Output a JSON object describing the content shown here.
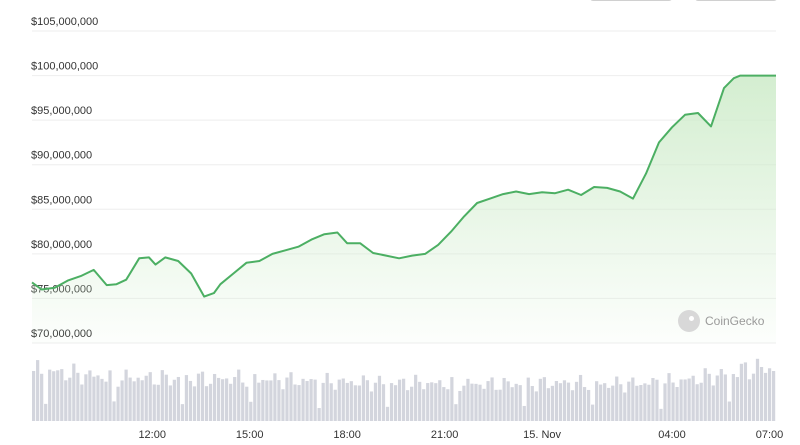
{
  "chart_data": {
    "type": "area",
    "currency": "$",
    "line_color": "#4caf63",
    "fill_color": "#cfeccb",
    "volume_color": "#d3d5dd",
    "y_axis": {
      "ticks": [
        "$70,000,000",
        "$75,000,000",
        "$80,000,000",
        "$85,000,000",
        "$90,000,000",
        "$95,000,000",
        "$100,000,000",
        "$105,000,000"
      ],
      "tick_values": [
        70000000,
        75000000,
        80000000,
        85000000,
        90000000,
        95000000,
        100000000,
        105000000
      ],
      "ylim": [
        70000000,
        105000000
      ]
    },
    "x_axis": {
      "ticks": [
        "12:00",
        "15:00",
        "18:00",
        "21:00",
        "15. Nov",
        "04:00",
        "07:00"
      ],
      "tick_hours": [
        12,
        15,
        18,
        21,
        24,
        28,
        31
      ],
      "xlim_hours": [
        8.3,
        31.2
      ]
    },
    "grid": true,
    "series": [
      {
        "values_hours": [
          8.3,
          8.6,
          9.0,
          9.4,
          9.8,
          10.2,
          10.6,
          10.9,
          11.2,
          11.6,
          11.9,
          12.1,
          12.4,
          12.8,
          13.2,
          13.6,
          13.9,
          14.1,
          14.5,
          14.9,
          15.3,
          15.7,
          16.1,
          16.5,
          16.9,
          17.3,
          17.7,
          18.0,
          18.4,
          18.8,
          19.2,
          19.6,
          20.0,
          20.4,
          20.8,
          21.2,
          21.6,
          22.0,
          22.4,
          22.8,
          23.2,
          23.6,
          24.0,
          24.4,
          24.8,
          25.2,
          25.6,
          26.0,
          26.4,
          26.8,
          27.2,
          27.6,
          28.0,
          28.4,
          28.8,
          29.2,
          29.6,
          29.9,
          30.1,
          30.4,
          30.7,
          31.0,
          31.2
        ],
        "values": [
          76800000,
          76000000,
          76200000,
          77000000,
          77500000,
          78200000,
          76500000,
          76600000,
          77100000,
          79500000,
          79600000,
          78800000,
          79600000,
          79200000,
          77800000,
          75200000,
          75600000,
          76600000,
          77800000,
          79000000,
          79200000,
          80000000,
          80400000,
          80800000,
          81600000,
          82200000,
          82400000,
          81200000,
          81200000,
          80100000,
          79800000,
          79500000,
          79800000,
          80000000,
          81000000,
          82500000,
          84200000,
          85700000,
          86200000,
          86700000,
          87000000,
          86700000,
          86900000,
          86800000,
          87200000,
          86600000,
          87500000,
          87400000,
          87000000,
          86200000,
          89000000,
          92500000,
          94200000,
          95600000,
          95800000,
          94300000,
          98600000,
          99700000,
          100000000,
          100000000,
          100000000,
          100000000,
          100000000
        ]
      }
    ],
    "volume": {
      "levels": [
        0.95,
        0.94,
        0.93,
        0.9,
        0.88,
        0.86,
        0.84,
        0.83,
        0.82,
        0.82,
        0.81,
        0.81,
        0.8,
        0.8,
        0.8,
        0.79,
        0.8,
        0.81,
        0.81,
        0.8,
        0.79,
        0.78,
        0.77,
        0.76,
        0.75,
        0.74,
        0.74,
        0.74,
        0.73,
        0.73,
        0.72,
        0.72,
        0.72,
        0.72,
        0.71,
        0.71,
        0.71,
        0.71,
        0.7,
        0.7,
        0.7,
        0.71,
        0.71,
        0.71,
        0.72,
        0.72,
        0.72,
        0.71,
        0.71,
        0.7,
        0.7,
        0.71,
        0.72,
        0.73,
        0.74,
        0.76,
        0.79,
        0.82,
        0.86,
        0.9,
        0.95,
        0.99,
        1.0,
        1.0
      ]
    }
  },
  "watermark": {
    "text": "CoinGecko"
  }
}
